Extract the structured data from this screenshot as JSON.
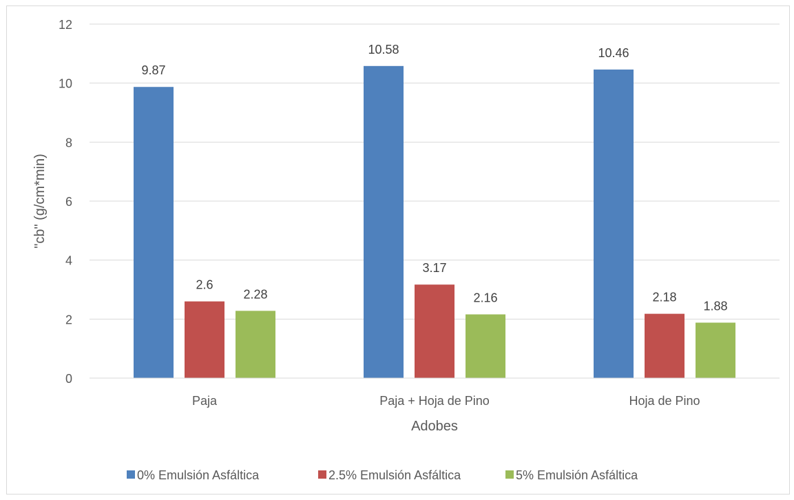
{
  "chart_data": {
    "type": "bar",
    "title": "",
    "xlabel": "Adobes",
    "ylabel": "\"cb\" (g/cm*min)",
    "ylim": [
      0,
      12
    ],
    "yticks": [
      0,
      2,
      4,
      6,
      8,
      10,
      12
    ],
    "ytick_labels": [
      "0",
      "2",
      "4",
      "6",
      "8",
      "10",
      "12"
    ],
    "categories": [
      "Paja",
      "Paja + Hoja de Pino",
      "Hoja de Pino"
    ],
    "series": [
      {
        "name": "0% Emulsión Asfáltica",
        "values": [
          9.87,
          10.58,
          10.46
        ],
        "labels": [
          "9.87",
          "10.58",
          "10.46"
        ],
        "color": "#4f81bd"
      },
      {
        "name": "2.5% Emulsión Asfáltica",
        "values": [
          2.6,
          3.17,
          2.18
        ],
        "labels": [
          "2.6",
          "3.17",
          "2.18"
        ],
        "color": "#c0504d"
      },
      {
        "name": "5% Emulsión Asfáltica",
        "values": [
          2.28,
          2.16,
          1.88
        ],
        "labels": [
          "2.28",
          "2.16",
          "1.88"
        ],
        "color": "#9bbb59"
      }
    ],
    "grid": true,
    "legend": "bottom"
  }
}
